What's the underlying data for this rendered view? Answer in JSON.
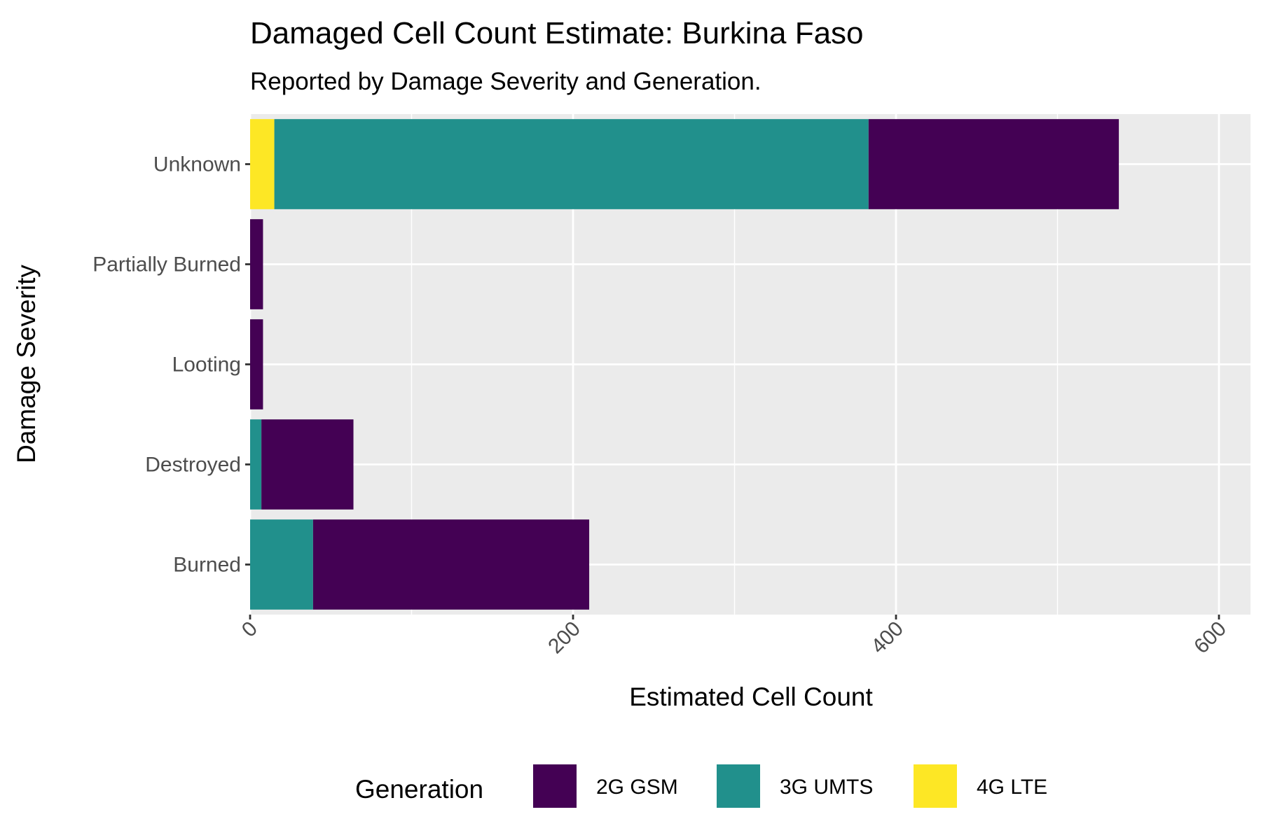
{
  "chart_data": {
    "type": "bar",
    "orientation": "horizontal",
    "stacked": true,
    "title": "Damaged Cell Count Estimate: Burkina Faso",
    "subtitle": "Reported by Damage Severity and Generation.",
    "xlabel": "Estimated Cell Count",
    "ylabel": "Damage Severity",
    "xlim": [
      0,
      620
    ],
    "x_ticks": [
      "0",
      "200",
      "400",
      "600"
    ],
    "grid": true,
    "categories": [
      "Burned",
      "Destroyed",
      "Looting",
      "Partially Burned",
      "Unknown"
    ],
    "series": [
      {
        "name": "4G LTE",
        "color": "#FDE725",
        "values": [
          0,
          0,
          0,
          0,
          15
        ]
      },
      {
        "name": "3G UMTS",
        "color": "#21908C",
        "values": [
          39,
          7,
          0,
          0,
          368
        ]
      },
      {
        "name": "2G GSM",
        "color": "#440154",
        "values": [
          171,
          57,
          8,
          8,
          155
        ]
      }
    ],
    "legend": {
      "title": "Generation",
      "position": "bottom",
      "entries": [
        "2G GSM",
        "3G UMTS",
        "4G LTE"
      ]
    }
  }
}
